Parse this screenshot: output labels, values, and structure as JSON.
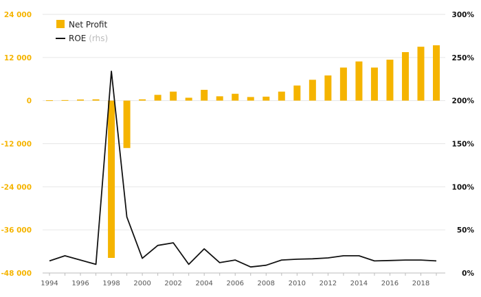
{
  "chart_data": {
    "type": "bar+line",
    "x_ticks": [
      "1994",
      "1996",
      "1998",
      "2000",
      "2002",
      "2004",
      "2006",
      "2008",
      "2010",
      "2012",
      "2014",
      "2016",
      "2018"
    ],
    "left_axis": {
      "ylim": [
        -48000,
        24000
      ],
      "ticks": [
        24000,
        12000,
        0,
        -12000,
        -24000,
        -36000,
        -48000
      ],
      "tick_labels": [
        "24 000",
        "12 000",
        "0",
        "-12 000",
        "-24 000",
        "-36 000",
        "-48 000"
      ],
      "color": "#f5b400"
    },
    "right_axis": {
      "ylim": [
        0,
        300
      ],
      "ticks": [
        300,
        250,
        200,
        150,
        100,
        50,
        0
      ],
      "tick_labels": [
        "300%",
        "250%",
        "200%",
        "150%",
        "100%",
        "50%",
        "0%"
      ],
      "color": "#111111"
    },
    "years": [
      1994,
      1995,
      1996,
      1997,
      1998,
      1999,
      2000,
      2001,
      2002,
      2003,
      2004,
      2005,
      2006,
      2007,
      2008,
      2009,
      2010,
      2011,
      2012,
      2013,
      2014,
      2015,
      2016,
      2017,
      2018,
      2019
    ],
    "series": [
      {
        "name": "Net Profit",
        "kind": "bar",
        "axis": "left",
        "color": "#f5b400",
        "values": [
          100,
          150,
          300,
          350,
          -43800,
          -13200,
          350,
          1600,
          2500,
          800,
          3000,
          1200,
          1900,
          1000,
          1100,
          2500,
          4200,
          5800,
          7000,
          9200,
          10900,
          9200,
          11400,
          13500,
          15000,
          15400
        ]
      },
      {
        "name": "ROE",
        "name_suffix": "(rhs)",
        "kind": "line",
        "axis": "right",
        "color": "#111111",
        "values": [
          14,
          20,
          15,
          10,
          234,
          65,
          17,
          32,
          35,
          10,
          28,
          12,
          15,
          7,
          9,
          15,
          16,
          16.5,
          17.5,
          20,
          20,
          14,
          14.5,
          15,
          15,
          14
        ]
      }
    ],
    "grid": "horizontal",
    "legend_position": "top-left"
  }
}
